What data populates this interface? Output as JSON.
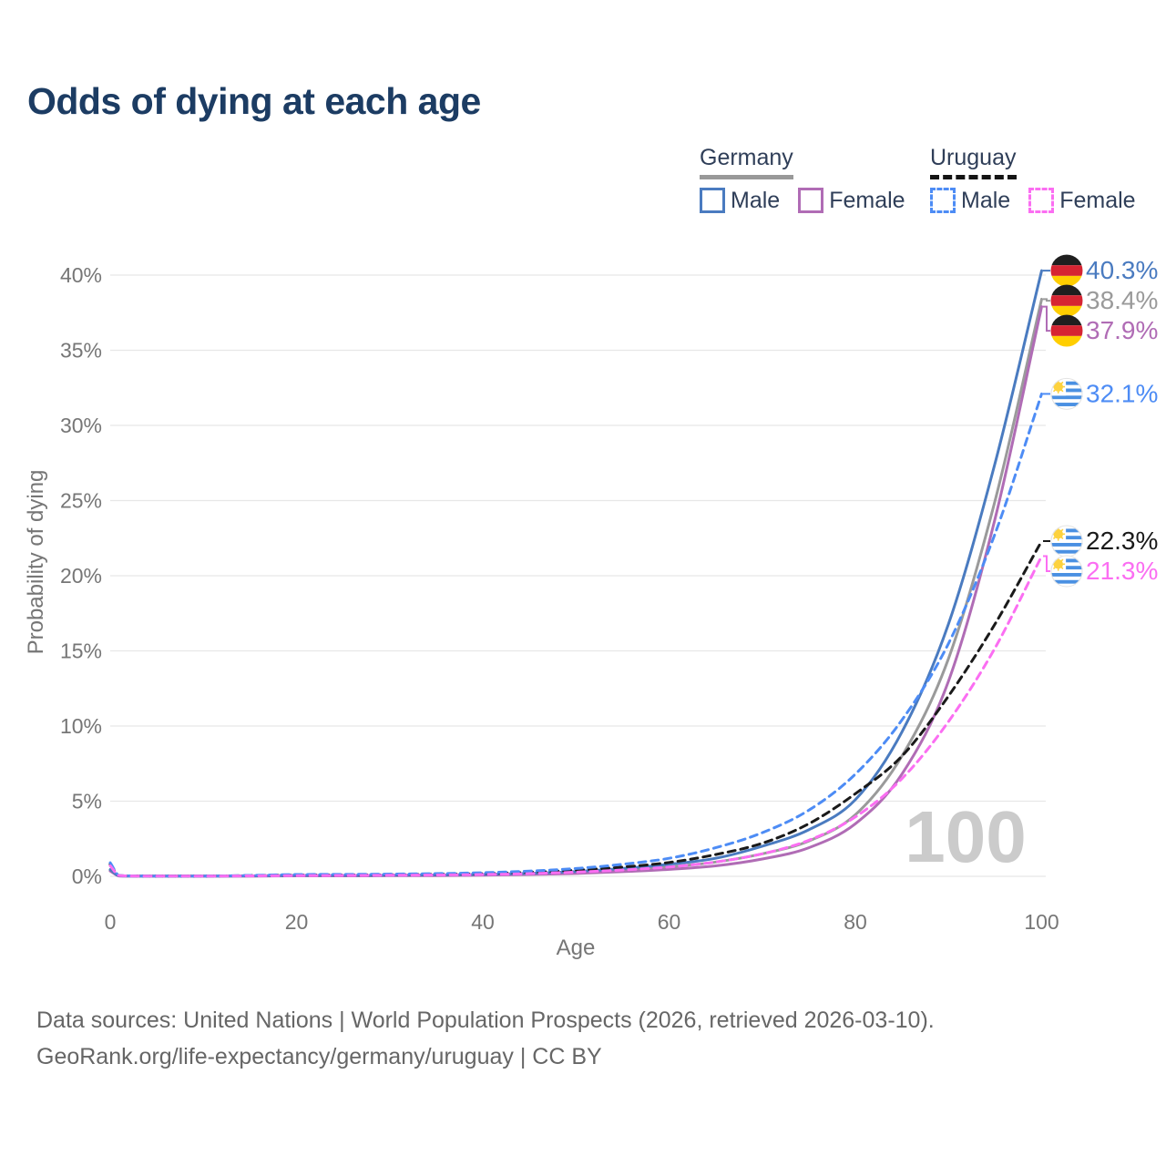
{
  "title": "Odds of dying at each age",
  "legend": {
    "groups": [
      {
        "label": "Germany",
        "line_style": "solid",
        "line_color": "#999999",
        "items": [
          {
            "label": "Male",
            "color": "#4a7bc0",
            "style": "solid"
          },
          {
            "label": "Female",
            "color": "#b06cb5",
            "style": "solid"
          }
        ]
      },
      {
        "label": "Uruguay",
        "line_style": "dashed",
        "line_color": "#141414",
        "items": [
          {
            "label": "Male",
            "color": "#4d8cf5",
            "style": "dashed"
          },
          {
            "label": "Female",
            "color": "#fb6ef2",
            "style": "dashed"
          }
        ]
      }
    ]
  },
  "chart_data": {
    "type": "line",
    "title": "Odds of dying at each age",
    "xlabel": "Age",
    "ylabel": "Probability of dying",
    "xlim": [
      0,
      100
    ],
    "ylim": [
      0,
      42
    ],
    "x_ticks": [
      0,
      20,
      40,
      60,
      80,
      100
    ],
    "y_tick_step_percent": 5,
    "y_ticks": [
      "0%",
      "5%",
      "10%",
      "15%",
      "20%",
      "25%",
      "30%",
      "35%",
      "40%"
    ],
    "grid": "horizontal-only",
    "grid_color": "#e7e7e7",
    "watermark": "100",
    "watermark_color": "#cbcbcb",
    "x": [
      0,
      1,
      5,
      10,
      15,
      20,
      25,
      30,
      35,
      40,
      45,
      50,
      55,
      60,
      65,
      70,
      75,
      80,
      85,
      90,
      95,
      100
    ],
    "series": [
      {
        "name": "Germany Both sexes",
        "country": "Germany",
        "flag": "germany",
        "color": "#9a9a9a",
        "dash": false,
        "end_label": "38.4%",
        "values": [
          0.4,
          0.03,
          0.01,
          0.01,
          0.02,
          0.04,
          0.05,
          0.06,
          0.07,
          0.1,
          0.16,
          0.26,
          0.42,
          0.62,
          0.95,
          1.5,
          2.35,
          4.1,
          8.0,
          14.5,
          25.0,
          38.4
        ]
      },
      {
        "name": "Germany Female",
        "country": "Germany",
        "flag": "germany",
        "color": "#b06cb5",
        "dash": false,
        "end_label": "37.9%",
        "values": [
          0.35,
          0.02,
          0.01,
          0.01,
          0.02,
          0.03,
          0.03,
          0.04,
          0.05,
          0.08,
          0.12,
          0.19,
          0.31,
          0.46,
          0.7,
          1.15,
          1.9,
          3.5,
          6.8,
          13.0,
          23.8,
          37.9
        ]
      },
      {
        "name": "Germany Male",
        "country": "Germany",
        "flag": "germany",
        "color": "#4a7bc0",
        "dash": false,
        "end_label": "40.3%",
        "values": [
          0.45,
          0.03,
          0.01,
          0.01,
          0.03,
          0.06,
          0.06,
          0.07,
          0.09,
          0.13,
          0.2,
          0.32,
          0.52,
          0.8,
          1.2,
          2.0,
          3.1,
          5.1,
          9.6,
          16.8,
          27.5,
          40.3
        ]
      },
      {
        "name": "Uruguay Both sexes",
        "country": "Uruguay",
        "flag": "uruguay",
        "color": "#1a1a1a",
        "dash": true,
        "end_label": "22.3%",
        "values": [
          0.8,
          0.04,
          0.02,
          0.02,
          0.05,
          0.09,
          0.1,
          0.11,
          0.14,
          0.18,
          0.27,
          0.41,
          0.62,
          0.92,
          1.45,
          2.2,
          3.5,
          5.5,
          8.0,
          12.0,
          16.8,
          22.3
        ]
      },
      {
        "name": "Uruguay Male",
        "country": "Uruguay",
        "flag": "uruguay",
        "color": "#4d8cf5",
        "dash": true,
        "end_label": "32.1%",
        "values": [
          0.9,
          0.05,
          0.02,
          0.02,
          0.06,
          0.12,
          0.13,
          0.15,
          0.18,
          0.24,
          0.35,
          0.52,
          0.8,
          1.2,
          1.9,
          2.9,
          4.4,
          6.8,
          10.4,
          15.5,
          22.8,
          32.1
        ]
      },
      {
        "name": "Uruguay Female",
        "country": "Uruguay",
        "flag": "uruguay",
        "color": "#fb6ef2",
        "dash": true,
        "end_label": "21.3%",
        "values": [
          0.7,
          0.04,
          0.01,
          0.01,
          0.03,
          0.05,
          0.06,
          0.07,
          0.09,
          0.12,
          0.18,
          0.28,
          0.42,
          0.62,
          0.95,
          1.5,
          2.4,
          3.95,
          6.5,
          10.3,
          15.2,
          21.3
        ]
      }
    ]
  },
  "footer": {
    "line1": "Data sources: United Nations | World Population Prospects (2026, retrieved 2026-03-10).",
    "line2": "GeoRank.org/life-expectancy/germany/uruguay | CC BY"
  },
  "colors": {
    "title": "#1c3c63",
    "legend_text": "#2f3e58",
    "axis_text": "#767676",
    "grid": "#e7e7e7",
    "watermark": "#cbcbcb",
    "footer_text": "#666666",
    "germany_male": "#4a7bc0",
    "germany_female": "#b06cb5",
    "germany_both": "#9a9a9a",
    "uruguay_male": "#4d8cf5",
    "uruguay_female": "#fb6ef2",
    "uruguay_both": "#1a1a1a",
    "flag_germany_bands": [
      "#1f1f1f",
      "#d62432",
      "#ffce00"
    ],
    "flag_uruguay_stripe": "#4a90e2",
    "flag_uruguay_sun": "#fdd23e"
  }
}
